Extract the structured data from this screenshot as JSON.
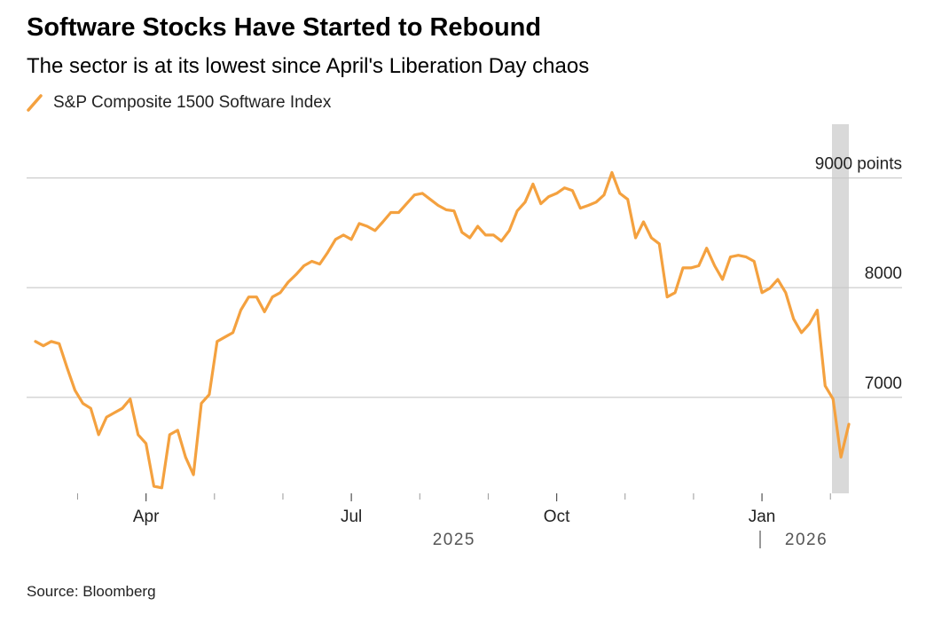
{
  "chart_data": {
    "type": "line",
    "title": "Software Stocks Have Started to Rebound",
    "subtitle": "The sector is at its lowest since April's Liberation Day chaos",
    "source": "Source: Bloomberg",
    "categories": [
      null,
      null,
      null,
      null,
      null,
      null,
      null,
      null,
      null,
      null,
      null,
      null,
      null,
      null,
      "Apr",
      null,
      null,
      null,
      null,
      null,
      null,
      null,
      null,
      null,
      null,
      null,
      null,
      null,
      null,
      null,
      null,
      null,
      null,
      null,
      null,
      null,
      null,
      null,
      null,
      null,
      "Jul",
      null,
      null,
      null,
      null,
      null,
      null,
      null,
      null,
      null,
      null,
      null,
      null,
      null,
      null,
      null,
      null,
      null,
      null,
      null,
      null,
      null,
      null,
      null,
      null,
      null,
      "Oct",
      null,
      null,
      null,
      null,
      null,
      null,
      null,
      null,
      null,
      null,
      null,
      null,
      null,
      null,
      null,
      null,
      null,
      null,
      null,
      null,
      null,
      null,
      null,
      null,
      null,
      "Jan",
      null,
      null,
      null,
      null,
      null,
      null,
      null,
      null,
      null,
      null,
      null
    ],
    "years": [
      "2025",
      "2026"
    ],
    "series": [
      {
        "name": "S&P Composite 1500 Software Index",
        "color": "#f4a13f",
        "values": [
          7510,
          7470,
          7510,
          7490,
          7270,
          7065,
          6945,
          6900,
          6660,
          6820,
          6860,
          6900,
          6985,
          6660,
          6580,
          6190,
          6175,
          6660,
          6700,
          6455,
          6295,
          6945,
          7025,
          7510,
          7550,
          7590,
          7795,
          7915,
          7915,
          7780,
          7915,
          7955,
          8050,
          8120,
          8200,
          8240,
          8215,
          8320,
          8440,
          8480,
          8440,
          8585,
          8560,
          8520,
          8600,
          8685,
          8685,
          8765,
          8845,
          8860,
          8805,
          8750,
          8710,
          8700,
          8505,
          8455,
          8560,
          8480,
          8480,
          8425,
          8520,
          8700,
          8780,
          8945,
          8765,
          8830,
          8860,
          8910,
          8885,
          8725,
          8750,
          8780,
          8845,
          9050,
          8860,
          8805,
          8455,
          8600,
          8455,
          8400,
          7915,
          7955,
          8180,
          8180,
          8200,
          8360,
          8200,
          8075,
          8280,
          8295,
          8280,
          8240,
          7955,
          7995,
          8075,
          7955,
          7715,
          7590,
          7670,
          7795,
          7105,
          6985,
          6455,
          6755
        ]
      }
    ],
    "ylim": [
      6125,
      9490
    ],
    "yticks": [
      7000,
      8000,
      {
        "value": 9000,
        "label": "9000 points"
      }
    ],
    "grid": true
  }
}
